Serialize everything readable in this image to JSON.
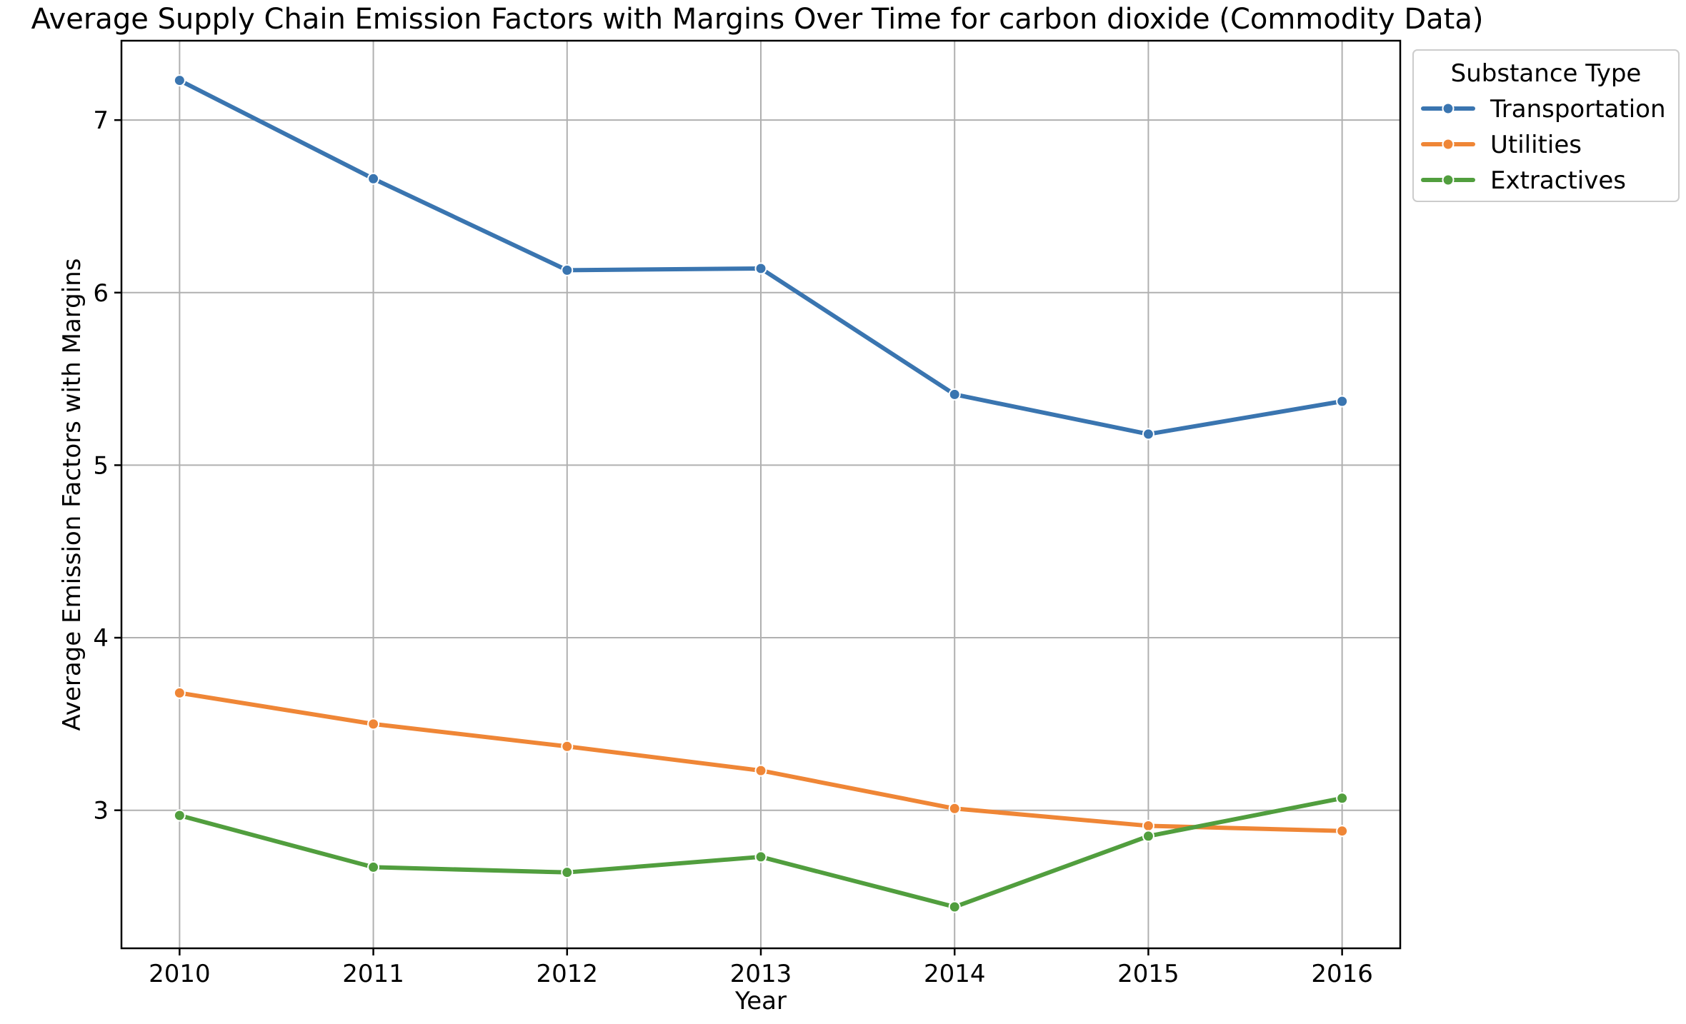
{
  "chart_data": {
    "type": "line",
    "title": "Average Supply Chain Emission Factors with Margins Over Time for carbon dioxide (Commodity Data)",
    "xlabel": "Year",
    "ylabel": "Average Emission Factors with Margins",
    "x": [
      2010,
      2011,
      2012,
      2013,
      2014,
      2015,
      2016
    ],
    "x_tick_labels": [
      "2010",
      "2011",
      "2012",
      "2013",
      "2014",
      "2015",
      "2016"
    ],
    "y_ticks": [
      3,
      4,
      5,
      6,
      7
    ],
    "y_tick_labels": [
      "3",
      "4",
      "5",
      "6",
      "7"
    ],
    "xlim": [
      2009.7,
      2016.3
    ],
    "ylim": [
      2.2,
      7.46
    ],
    "grid": true,
    "legend": {
      "title": "Substance Type",
      "placement": "outside-top-right"
    },
    "series": [
      {
        "name": "Transportation",
        "color": "#3a75b0",
        "values": [
          7.23,
          6.66,
          6.13,
          6.14,
          5.41,
          5.18,
          5.37
        ]
      },
      {
        "name": "Utilities",
        "color": "#ef8636",
        "values": [
          3.68,
          3.5,
          3.37,
          3.23,
          3.01,
          2.91,
          2.88
        ]
      },
      {
        "name": "Extractives",
        "color": "#519e3e",
        "values": [
          2.97,
          2.67,
          2.64,
          2.73,
          2.44,
          2.85,
          3.07
        ]
      }
    ]
  }
}
